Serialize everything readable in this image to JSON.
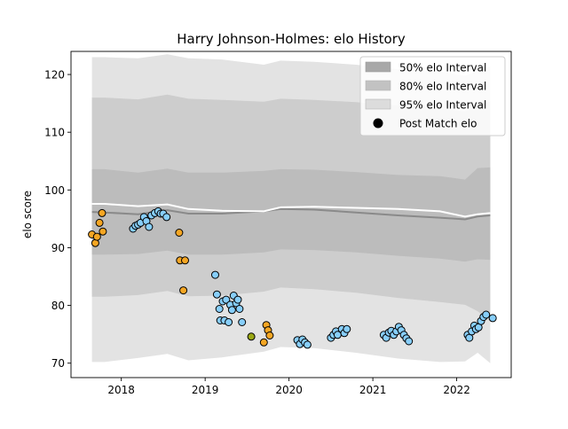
{
  "chart_data": {
    "type": "scatter",
    "title": "Harry Johnson-Holmes: elo History",
    "xlabel": "",
    "ylabel": "elo score",
    "xlim": [
      2017.4,
      2022.65
    ],
    "ylim": [
      67.5,
      124.0
    ],
    "x_ticks": [
      2018,
      2019,
      2020,
      2021,
      2022
    ],
    "x_tick_labels": [
      "2018",
      "2019",
      "2020",
      "2021",
      "2022"
    ],
    "y_ticks": [
      70,
      80,
      90,
      100,
      110,
      120
    ],
    "y_tick_labels": [
      "70",
      "80",
      "90",
      "100",
      "110",
      "120"
    ],
    "grid": false,
    "legend_position": "top-right",
    "legend": [
      {
        "label": "50% elo Interval",
        "color": "#a8a8a8"
      },
      {
        "label": "80% elo Interval",
        "color": "#c2c2c2"
      },
      {
        "label": "95% elo Interval",
        "color": "#dcdcdc"
      },
      {
        "label": "Post Match elo",
        "color": "#000000"
      }
    ],
    "band_x": [
      2017.65,
      2017.8,
      2018.2,
      2018.55,
      2018.8,
      2019.2,
      2019.7,
      2019.9,
      2020.3,
      2020.8,
      2021.3,
      2021.8,
      2022.1,
      2022.25,
      2022.4
    ],
    "median": [
      96.2,
      96.1,
      95.8,
      96.5,
      95.9,
      95.9,
      96.3,
      96.7,
      96.6,
      96.1,
      95.6,
      95.2,
      94.9,
      95.4,
      95.6
    ],
    "mean": [
      97.6,
      97.6,
      97.2,
      97.5,
      96.7,
      96.4,
      96.3,
      97.0,
      97.1,
      96.9,
      96.7,
      96.3,
      95.4,
      95.8,
      96.0
    ],
    "band_50": {
      "lower": [
        88.8,
        88.8,
        88.9,
        89.5,
        88.8,
        88.8,
        89.2,
        89.7,
        89.6,
        89.2,
        88.6,
        88.1,
        87.6,
        88.0,
        87.9
      ],
      "upper": [
        103.6,
        103.6,
        103.0,
        103.7,
        103.0,
        103.0,
        103.3,
        103.6,
        103.5,
        103.1,
        102.6,
        102.4,
        101.8,
        103.8,
        103.9
      ]
    },
    "band_80": {
      "lower": [
        81.5,
        81.5,
        81.8,
        82.5,
        81.6,
        81.7,
        82.4,
        83.1,
        82.8,
        82.2,
        81.3,
        80.6,
        80.1,
        79.0,
        77.2
      ],
      "upper": [
        116.0,
        116.0,
        115.7,
        116.5,
        115.8,
        115.6,
        115.3,
        115.8,
        115.6,
        115.2,
        114.6,
        114.1,
        113.6,
        114.8,
        115.3
      ]
    },
    "band_95": {
      "lower": [
        70.2,
        70.2,
        70.9,
        71.6,
        70.5,
        71.0,
        72.0,
        72.8,
        72.6,
        71.8,
        70.8,
        70.2,
        70.3,
        71.8,
        70.0
      ],
      "upper": [
        123.0,
        123.0,
        122.8,
        123.5,
        122.8,
        122.6,
        121.7,
        122.4,
        122.2,
        121.7,
        120.9,
        120.5,
        119.8,
        120.6,
        121.4
      ]
    },
    "series": [
      {
        "color": "#f5a623",
        "points": [
          [
            2017.65,
            92.3
          ],
          [
            2017.69,
            90.8
          ],
          [
            2017.71,
            91.9
          ],
          [
            2017.74,
            94.3
          ],
          [
            2017.77,
            96.0
          ],
          [
            2017.78,
            92.8
          ],
          [
            2018.69,
            92.6
          ],
          [
            2018.7,
            87.8
          ],
          [
            2018.74,
            82.6
          ],
          [
            2018.76,
            87.8
          ],
          [
            2019.7,
            73.6
          ],
          [
            2019.73,
            76.6
          ],
          [
            2019.75,
            75.7
          ],
          [
            2019.77,
            74.8
          ]
        ]
      },
      {
        "color": "#87cefa",
        "points": [
          [
            2018.14,
            93.3
          ],
          [
            2018.17,
            93.8
          ],
          [
            2018.2,
            94.0
          ],
          [
            2018.23,
            94.3
          ],
          [
            2018.27,
            95.3
          ],
          [
            2018.3,
            94.6
          ],
          [
            2018.33,
            93.6
          ],
          [
            2018.36,
            95.6
          ],
          [
            2018.4,
            96.0
          ],
          [
            2018.44,
            96.3
          ],
          [
            2018.47,
            95.9
          ],
          [
            2018.5,
            95.9
          ],
          [
            2018.54,
            95.3
          ],
          [
            2019.12,
            85.3
          ],
          [
            2019.14,
            81.9
          ],
          [
            2019.17,
            79.4
          ],
          [
            2019.18,
            77.4
          ],
          [
            2019.21,
            80.7
          ],
          [
            2019.23,
            77.4
          ],
          [
            2019.25,
            81.0
          ],
          [
            2019.28,
            77.1
          ],
          [
            2019.3,
            80.1
          ],
          [
            2019.32,
            79.2
          ],
          [
            2019.34,
            81.7
          ],
          [
            2019.37,
            80.4
          ],
          [
            2019.39,
            81.0
          ],
          [
            2019.41,
            79.4
          ],
          [
            2019.44,
            77.1
          ],
          [
            2020.1,
            74.0
          ],
          [
            2020.13,
            73.3
          ],
          [
            2020.16,
            74.1
          ],
          [
            2020.19,
            73.6
          ],
          [
            2020.22,
            73.2
          ],
          [
            2020.5,
            74.4
          ],
          [
            2020.53,
            74.9
          ],
          [
            2020.56,
            75.5
          ],
          [
            2020.58,
            74.9
          ],
          [
            2020.63,
            75.9
          ],
          [
            2020.66,
            75.2
          ],
          [
            2020.69,
            75.9
          ],
          [
            2021.13,
            74.9
          ],
          [
            2021.16,
            74.4
          ],
          [
            2021.19,
            75.3
          ],
          [
            2021.22,
            75.6
          ],
          [
            2021.25,
            74.9
          ],
          [
            2021.28,
            75.5
          ],
          [
            2021.31,
            76.3
          ],
          [
            2021.34,
            75.7
          ],
          [
            2021.37,
            74.9
          ],
          [
            2021.4,
            74.3
          ],
          [
            2021.43,
            73.8
          ],
          [
            2022.13,
            74.9
          ],
          [
            2022.15,
            74.4
          ],
          [
            2022.18,
            75.5
          ],
          [
            2022.21,
            76.5
          ],
          [
            2022.23,
            75.9
          ],
          [
            2022.26,
            76.2
          ],
          [
            2022.29,
            77.3
          ],
          [
            2022.32,
            78.0
          ],
          [
            2022.35,
            78.4
          ],
          [
            2022.43,
            77.8
          ]
        ]
      },
      {
        "color": "#9aa814",
        "points": [
          [
            2019.55,
            74.6
          ]
        ]
      }
    ]
  }
}
